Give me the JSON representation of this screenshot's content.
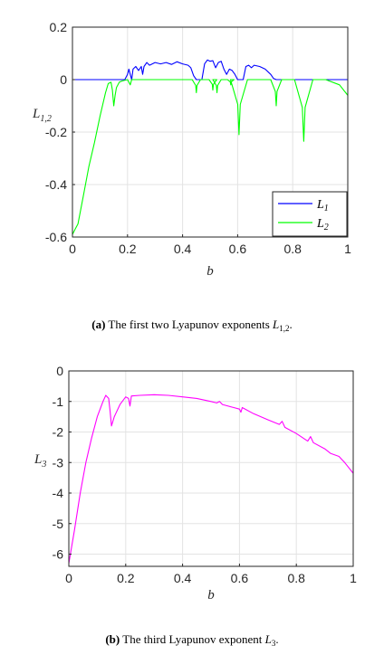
{
  "chart_data": [
    {
      "type": "line",
      "xlabel": "b",
      "ylabel_main": "L",
      "ylabel_sub": "1,2",
      "xlim": [
        0,
        1
      ],
      "ylim": [
        -0.6,
        0.2
      ],
      "xticks": [
        0,
        0.2,
        0.4,
        0.6,
        0.8,
        1
      ],
      "xtick_labels": [
        "0",
        "0.2",
        "0.4",
        "0.6",
        "0.8",
        "1"
      ],
      "yticks": [
        0.2,
        0,
        -0.2,
        -0.4,
        -0.6
      ],
      "ytick_labels": [
        "0.2",
        "0",
        "-0.2",
        "-0.4",
        "-0.6"
      ],
      "grid": true,
      "legend_position": "bottom-right",
      "series": [
        {
          "name": "L",
          "name_sub": "1",
          "color": "#0000ff",
          "points": [
            [
              0,
              0
            ],
            [
              0.19,
              0
            ],
            [
              0.2,
              0.02
            ],
            [
              0.205,
              0.04
            ],
            [
              0.21,
              0.02
            ],
            [
              0.215,
              0
            ],
            [
              0.22,
              0.04
            ],
            [
              0.23,
              0.05
            ],
            [
              0.24,
              0.035
            ],
            [
              0.25,
              0.05
            ],
            [
              0.255,
              0.02
            ],
            [
              0.26,
              0.05
            ],
            [
              0.27,
              0.065
            ],
            [
              0.28,
              0.055
            ],
            [
              0.3,
              0.065
            ],
            [
              0.32,
              0.06
            ],
            [
              0.34,
              0.065
            ],
            [
              0.36,
              0.058
            ],
            [
              0.38,
              0.068
            ],
            [
              0.4,
              0.06
            ],
            [
              0.42,
              0.055
            ],
            [
              0.43,
              0.045
            ],
            [
              0.44,
              0.015
            ],
            [
              0.45,
              0
            ],
            [
              0.47,
              0
            ],
            [
              0.48,
              0.06
            ],
            [
              0.49,
              0.075
            ],
            [
              0.5,
              0.07
            ],
            [
              0.51,
              0.072
            ],
            [
              0.52,
              0.045
            ],
            [
              0.53,
              0.065
            ],
            [
              0.54,
              0.07
            ],
            [
              0.55,
              0.04
            ],
            [
              0.56,
              0.02
            ],
            [
              0.57,
              0.04
            ],
            [
              0.58,
              0.035
            ],
            [
              0.59,
              0.02
            ],
            [
              0.6,
              0
            ],
            [
              0.62,
              0
            ],
            [
              0.63,
              0.05
            ],
            [
              0.64,
              0.055
            ],
            [
              0.65,
              0.045
            ],
            [
              0.66,
              0.055
            ],
            [
              0.68,
              0.05
            ],
            [
              0.7,
              0.04
            ],
            [
              0.72,
              0.02
            ],
            [
              0.73,
              0.005
            ],
            [
              0.74,
              0
            ],
            [
              1,
              0
            ]
          ]
        },
        {
          "name": "L",
          "name_sub": "2",
          "color": "#00ff00",
          "points": [
            [
              0,
              -0.59
            ],
            [
              0.01,
              -0.57
            ],
            [
              0.02,
              -0.55
            ],
            [
              0.04,
              -0.44
            ],
            [
              0.06,
              -0.33
            ],
            [
              0.08,
              -0.24
            ],
            [
              0.1,
              -0.14
            ],
            [
              0.12,
              -0.05
            ],
            [
              0.13,
              -0.015
            ],
            [
              0.14,
              -0.01
            ],
            [
              0.145,
              -0.04
            ],
            [
              0.15,
              -0.1
            ],
            [
              0.155,
              -0.06
            ],
            [
              0.16,
              -0.03
            ],
            [
              0.17,
              -0.01
            ],
            [
              0.18,
              -0.005
            ],
            [
              0.2,
              0
            ],
            [
              0.21,
              -0.02
            ],
            [
              0.215,
              0
            ],
            [
              1,
              0
            ]
          ],
          "dips": [
            [
              0.45,
              -0.05
            ],
            [
              0.51,
              -0.04
            ],
            [
              0.525,
              -0.05
            ],
            [
              0.575,
              -0.02
            ],
            [
              0.605,
              -0.21
            ],
            [
              0.74,
              -0.1
            ],
            [
              0.84,
              -0.235
            ]
          ]
        }
      ]
    },
    {
      "type": "line",
      "xlabel": "b",
      "ylabel_main": "L",
      "ylabel_sub": "3",
      "xlim": [
        0,
        1
      ],
      "ylim": [
        -6.4,
        0
      ],
      "xticks": [
        0,
        0.2,
        0.4,
        0.6,
        0.8,
        1
      ],
      "xtick_labels": [
        "0",
        "0.2",
        "0.4",
        "0.6",
        "0.8",
        "1"
      ],
      "yticks": [
        0,
        -1,
        -2,
        -3,
        -4,
        -5,
        -6
      ],
      "ytick_labels": [
        "0",
        "-1",
        "-2",
        "-3",
        "-4",
        "-5",
        "-6"
      ],
      "grid": true,
      "series": [
        {
          "name": "",
          "color": "#ff00ff",
          "points": [
            [
              0,
              -6.3
            ],
            [
              0.02,
              -5.2
            ],
            [
              0.04,
              -4
            ],
            [
              0.06,
              -3
            ],
            [
              0.08,
              -2.2
            ],
            [
              0.1,
              -1.5
            ],
            [
              0.12,
              -1
            ],
            [
              0.13,
              -0.8
            ],
            [
              0.14,
              -0.9
            ],
            [
              0.145,
              -1.3
            ],
            [
              0.15,
              -1.8
            ],
            [
              0.16,
              -1.5
            ],
            [
              0.18,
              -1.1
            ],
            [
              0.2,
              -0.85
            ],
            [
              0.21,
              -0.9
            ],
            [
              0.215,
              -1.15
            ],
            [
              0.22,
              -0.82
            ],
            [
              0.25,
              -0.8
            ],
            [
              0.3,
              -0.78
            ],
            [
              0.35,
              -0.8
            ],
            [
              0.4,
              -0.85
            ],
            [
              0.45,
              -0.9
            ],
            [
              0.5,
              -1
            ],
            [
              0.52,
              -1.05
            ],
            [
              0.53,
              -1
            ],
            [
              0.54,
              -1.1
            ],
            [
              0.58,
              -1.2
            ],
            [
              0.6,
              -1.25
            ],
            [
              0.605,
              -1.35
            ],
            [
              0.61,
              -1.2
            ],
            [
              0.65,
              -1.4
            ],
            [
              0.7,
              -1.6
            ],
            [
              0.74,
              -1.75
            ],
            [
              0.75,
              -1.65
            ],
            [
              0.76,
              -1.85
            ],
            [
              0.8,
              -2.05
            ],
            [
              0.84,
              -2.3
            ],
            [
              0.85,
              -2.15
            ],
            [
              0.86,
              -2.35
            ],
            [
              0.9,
              -2.55
            ],
            [
              0.92,
              -2.7
            ],
            [
              0.95,
              -2.8
            ],
            [
              0.97,
              -3
            ],
            [
              1,
              -3.35
            ]
          ]
        }
      ]
    }
  ],
  "captions": [
    {
      "label": "(a)",
      "text": "The first two Lyapunov exponents",
      "math_main": "L",
      "math_sub": "1,2",
      "end": "."
    },
    {
      "label": "(b)",
      "text": "The third Lyapunov exponent",
      "math_main": "L",
      "math_sub": "3",
      "end": "."
    }
  ]
}
